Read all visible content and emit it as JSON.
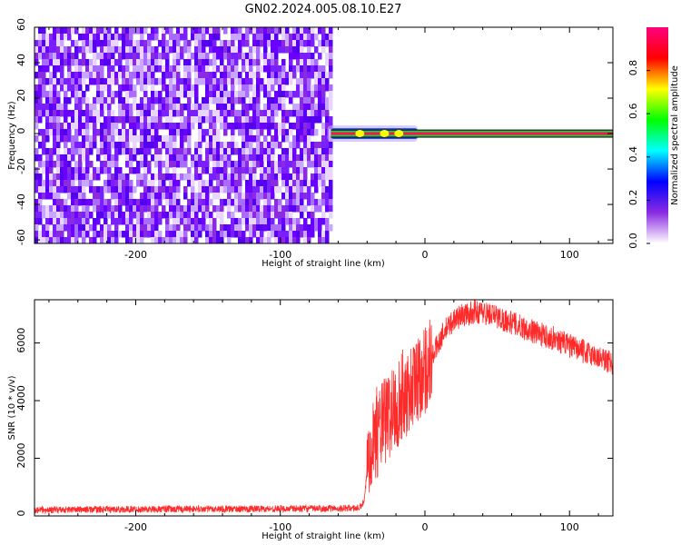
{
  "title": "GN02.2024.005.08.10.E27",
  "chart_data": [
    {
      "type": "heatmap",
      "xlabel": "Height of straight line (km)",
      "ylabel": "Frequency (Hz)",
      "xlim": [
        -270,
        130
      ],
      "ylim": [
        -62,
        60
      ],
      "xticks": [
        -200,
        -100,
        0,
        100
      ],
      "yticks": [
        -60,
        -40,
        -20,
        0,
        20,
        40,
        60
      ],
      "grid": false,
      "noise_region_x": [
        -270,
        -65
      ],
      "signal_band": {
        "x": [
          -65,
          130
        ],
        "freq_hz": 0,
        "halfwidth_hz": 2
      },
      "colorbar": {
        "label": "Normalized spectral amplitude",
        "range": [
          0,
          1
        ],
        "ticks": [
          0.0,
          0.2,
          0.4,
          0.6,
          0.8
        ],
        "colors": [
          "#ffffff",
          "#8a2be2",
          "#0000ff",
          "#00ffff",
          "#00ff00",
          "#ffff00",
          "#ff0000",
          "#ff0080"
        ]
      }
    },
    {
      "type": "line",
      "xlabel": "Height of straight line (km)",
      "ylabel": "SNR (10 * v/v)",
      "xlim": [
        -270,
        130
      ],
      "ylim": [
        0,
        7500
      ],
      "xticks": [
        -200,
        -100,
        0,
        100
      ],
      "yticks": [
        0,
        2000,
        4000,
        6000
      ],
      "grid": false,
      "series": [
        {
          "color": "#ff2a2a",
          "x": [
            -270,
            -250,
            -200,
            -150,
            -100,
            -60,
            -45,
            -42,
            -38,
            -35,
            -30,
            -25,
            -20,
            -15,
            -10,
            -5,
            0,
            5,
            10,
            15,
            20,
            25,
            30,
            35,
            40,
            45,
            50,
            60,
            70,
            80,
            90,
            100,
            110,
            120,
            130
          ],
          "y": [
            200,
            220,
            230,
            240,
            250,
            260,
            280,
            500,
            2600,
            2800,
            3100,
            3500,
            3800,
            4200,
            4400,
            4800,
            5100,
            5500,
            6100,
            6500,
            6800,
            6950,
            7000,
            7100,
            7050,
            7000,
            6900,
            6700,
            6500,
            6300,
            6150,
            5900,
            5700,
            5500,
            5300
          ]
        }
      ]
    }
  ]
}
